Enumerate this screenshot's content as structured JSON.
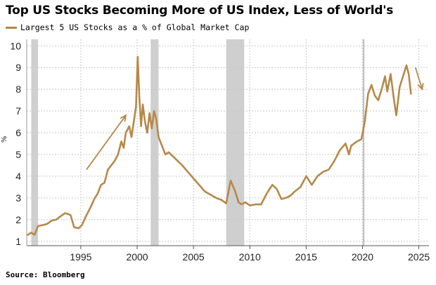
{
  "chart_data": {
    "type": "line",
    "title": "Top US Stocks Becoming More of US Index, Less of World's",
    "ylabel": "%",
    "xlim": [
      1990.2,
      2025.9
    ],
    "ylim": [
      0.8,
      10.3
    ],
    "x_ticks": [
      1995,
      2000,
      2005,
      2010,
      2015,
      2020,
      2025
    ],
    "y_ticks": [
      1,
      2,
      3,
      4,
      5,
      6,
      7,
      8,
      9,
      10
    ],
    "grid": true,
    "legend_position": "top-left",
    "source": "Source: Bloomberg",
    "colors": {
      "line": "#b5894a",
      "recession": "#cfcfcf",
      "grid": "#c8c8c8",
      "arrow": "#b5894a"
    },
    "recession_shading": [
      [
        1990.6,
        1991.2
      ],
      [
        2001.2,
        2001.9
      ],
      [
        2007.9,
        2009.5
      ]
    ],
    "reference_lines": [
      2020.1
    ],
    "series": [
      {
        "name": "Largest 5 US Stocks as a % of Global Market Cap",
        "x": [
          1990.3,
          1990.6,
          1990.9,
          1991.2,
          1991.6,
          1992.0,
          1992.4,
          1992.8,
          1993.2,
          1993.6,
          1993.9,
          1994.1,
          1994.4,
          1994.8,
          1995.1,
          1995.5,
          1995.9,
          1996.2,
          1996.5,
          1996.8,
          1997.1,
          1997.4,
          1997.7,
          1998.0,
          1998.3,
          1998.6,
          1998.8,
          1999.0,
          1999.3,
          1999.5,
          1999.7,
          1999.9,
          2000.05,
          2000.2,
          2000.35,
          2000.5,
          2000.7,
          2000.9,
          2001.1,
          2001.3,
          2001.5,
          2001.7,
          2001.9,
          2002.2,
          2002.5,
          2002.8,
          2003.2,
          2003.6,
          2004.0,
          2004.5,
          2005.0,
          2005.5,
          2006.0,
          2006.5,
          2007.0,
          2007.5,
          2007.9,
          2008.3,
          2008.7,
          2009.0,
          2009.3,
          2009.6,
          2010.0,
          2010.5,
          2011.0,
          2011.5,
          2012.0,
          2012.4,
          2012.8,
          2013.2,
          2013.6,
          2014.0,
          2014.5,
          2015.0,
          2015.5,
          2016.0,
          2016.5,
          2017.0,
          2017.5,
          2018.0,
          2018.5,
          2018.8,
          2019.0,
          2019.5,
          2019.9,
          2020.2,
          2020.5,
          2020.8,
          2021.1,
          2021.4,
          2021.7,
          2022.0,
          2022.2,
          2022.5,
          2022.8,
          2023.0,
          2023.3,
          2023.6,
          2023.9,
          2024.1,
          2024.3
        ],
        "values": [
          1.3,
          1.4,
          1.3,
          1.7,
          1.75,
          1.8,
          1.95,
          2.0,
          2.15,
          2.3,
          2.25,
          2.2,
          1.65,
          1.6,
          1.75,
          2.2,
          2.6,
          2.95,
          3.2,
          3.6,
          3.7,
          4.3,
          4.5,
          4.7,
          5.0,
          5.6,
          5.3,
          6.0,
          6.3,
          5.8,
          6.5,
          7.2,
          9.5,
          7.6,
          6.3,
          7.3,
          6.5,
          6.0,
          6.9,
          6.2,
          7.0,
          6.6,
          5.8,
          5.4,
          5.0,
          5.1,
          4.9,
          4.7,
          4.5,
          4.2,
          3.9,
          3.6,
          3.3,
          3.15,
          3.0,
          2.9,
          2.75,
          3.8,
          3.3,
          2.8,
          2.7,
          2.8,
          2.65,
          2.7,
          2.7,
          3.2,
          3.6,
          3.4,
          2.95,
          3.0,
          3.1,
          3.3,
          3.5,
          4.0,
          3.6,
          4.0,
          4.2,
          4.3,
          4.7,
          5.2,
          5.5,
          5.0,
          5.4,
          5.6,
          5.7,
          6.5,
          7.8,
          8.2,
          7.7,
          7.5,
          8.0,
          8.6,
          7.9,
          8.7,
          7.5,
          6.8,
          8.1,
          8.6,
          9.1,
          8.7,
          7.8
        ]
      }
    ],
    "annotations": [
      {
        "type": "arrow",
        "from": [
          1995.5,
          4.3
        ],
        "to": [
          1999.0,
          6.8
        ]
      },
      {
        "type": "arrow",
        "from": [
          2024.7,
          9.0
        ],
        "to": [
          2025.3,
          8.0
        ]
      }
    ]
  }
}
